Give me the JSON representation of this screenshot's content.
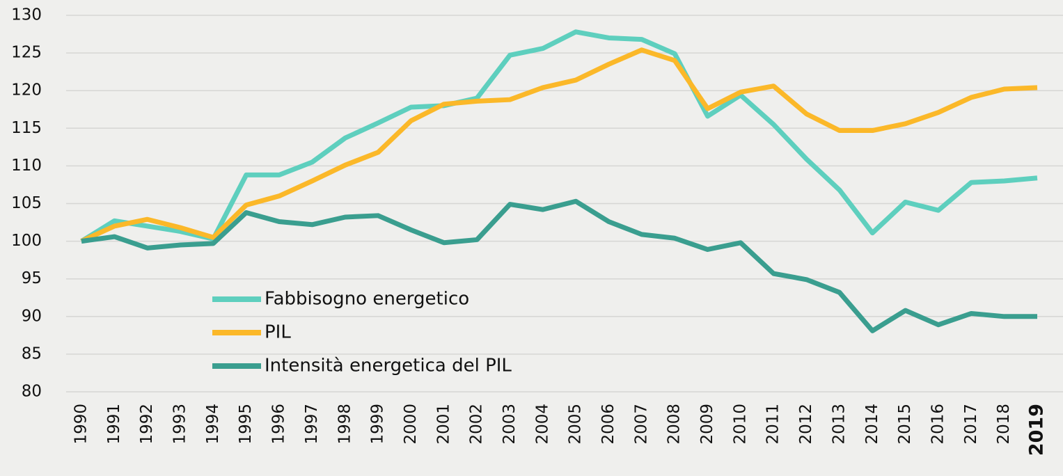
{
  "chart_data": {
    "type": "line",
    "categories": [
      "1990",
      "1991",
      "1992",
      "1993",
      "1994",
      "1995",
      "1996",
      "1997",
      "1998",
      "1999",
      "2000",
      "2001",
      "2002",
      "2003",
      "2004",
      "2005",
      "2006",
      "2007",
      "2008",
      "2009",
      "2010",
      "2011",
      "2012",
      "2013",
      "2014",
      "2015",
      "2016",
      "2017",
      "2018",
      "2019"
    ],
    "series": [
      {
        "name": "Fabbisogno energetico",
        "color": "#5ecfbe",
        "values": [
          100,
          102.7,
          102,
          101.3,
          100.3,
          108.8,
          108.8,
          110.5,
          113.7,
          115.7,
          117.8,
          118,
          119,
          124.7,
          125.6,
          127.8,
          127,
          126.8,
          124.9,
          116.6,
          119.4,
          115.5,
          110.9,
          106.8,
          101.1,
          105.2,
          104.1,
          107.8,
          108,
          108.4
        ]
      },
      {
        "name": "PIL",
        "color": "#fbb829",
        "values": [
          100,
          102,
          102.9,
          101.8,
          100.5,
          104.8,
          106,
          108,
          110.1,
          111.8,
          116,
          118.2,
          118.6,
          118.8,
          120.4,
          121.4,
          123.5,
          125.4,
          124,
          117.6,
          119.8,
          120.6,
          116.9,
          114.7,
          114.7,
          115.6,
          117.1,
          119.1,
          120.2,
          120.4
        ]
      },
      {
        "name": "Intensità energetica del PIL",
        "color": "#3a9e8f",
        "values": [
          100,
          100.6,
          99.1,
          99.5,
          99.7,
          103.8,
          102.6,
          102.2,
          103.2,
          103.4,
          101.5,
          99.8,
          100.2,
          104.9,
          104.2,
          105.3,
          102.6,
          100.9,
          100.4,
          98.9,
          99.8,
          95.7,
          94.9,
          93.2,
          88.1,
          90.8,
          88.9,
          90.4,
          90,
          90
        ]
      }
    ],
    "ylim": [
      80,
      130
    ],
    "yticks": [
      80,
      85,
      90,
      95,
      100,
      105,
      110,
      115,
      120,
      125,
      130
    ],
    "grid": true
  }
}
